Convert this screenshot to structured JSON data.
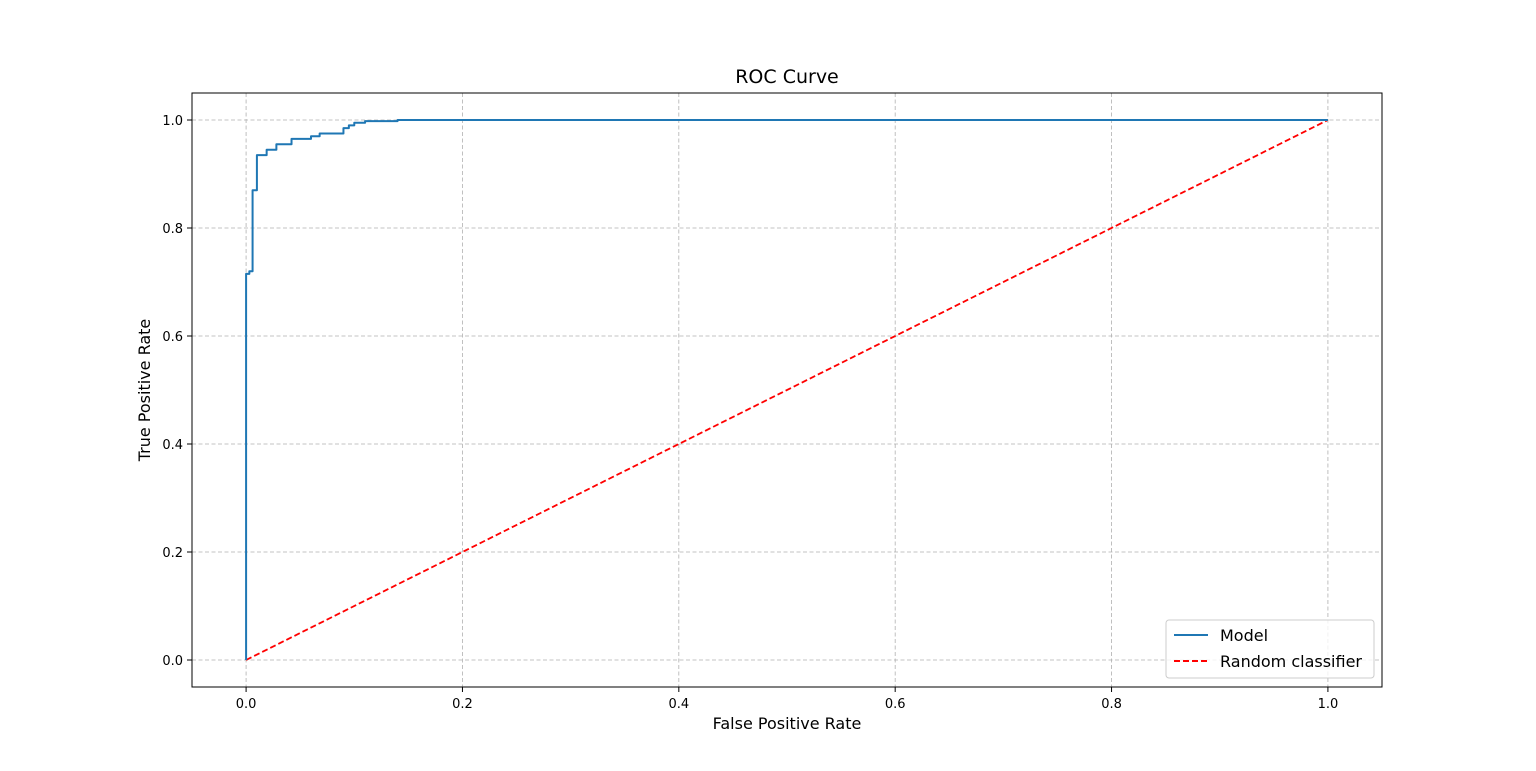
{
  "chart_data": {
    "type": "line",
    "title": "ROC Curve",
    "xlabel": "False Positive Rate",
    "ylabel": "True Positive Rate",
    "xlim": [
      -0.05,
      1.05
    ],
    "ylim": [
      -0.05,
      1.05
    ],
    "xticks": [
      0.0,
      0.2,
      0.4,
      0.6,
      0.8,
      1.0
    ],
    "yticks": [
      0.0,
      0.2,
      0.4,
      0.6,
      0.8,
      1.0
    ],
    "xtick_labels": [
      "0.0",
      "0.2",
      "0.4",
      "0.6",
      "0.8",
      "1.0"
    ],
    "ytick_labels": [
      "0.0",
      "0.2",
      "0.4",
      "0.6",
      "0.8",
      "1.0"
    ],
    "grid": true,
    "legend_position": "bottom-right",
    "series": [
      {
        "name": "Model",
        "color": "#1f77b4",
        "style": "solid",
        "x": [
          0.0,
          0.0,
          0.003,
          0.003,
          0.006,
          0.006,
          0.01,
          0.01,
          0.019,
          0.019,
          0.028,
          0.028,
          0.042,
          0.042,
          0.06,
          0.06,
          0.068,
          0.068,
          0.09,
          0.09,
          0.095,
          0.095,
          0.1,
          0.1,
          0.11,
          0.11,
          0.14,
          0.14,
          1.0
        ],
        "y": [
          0.0,
          0.715,
          0.715,
          0.72,
          0.72,
          0.87,
          0.87,
          0.935,
          0.935,
          0.945,
          0.945,
          0.955,
          0.955,
          0.965,
          0.965,
          0.97,
          0.97,
          0.975,
          0.975,
          0.985,
          0.985,
          0.99,
          0.99,
          0.995,
          0.995,
          0.998,
          0.998,
          1.0,
          1.0
        ]
      },
      {
        "name": "Random classifier",
        "color": "#ff0000",
        "style": "dashed",
        "x": [
          0.0,
          1.0
        ],
        "y": [
          0.0,
          1.0
        ]
      }
    ]
  }
}
